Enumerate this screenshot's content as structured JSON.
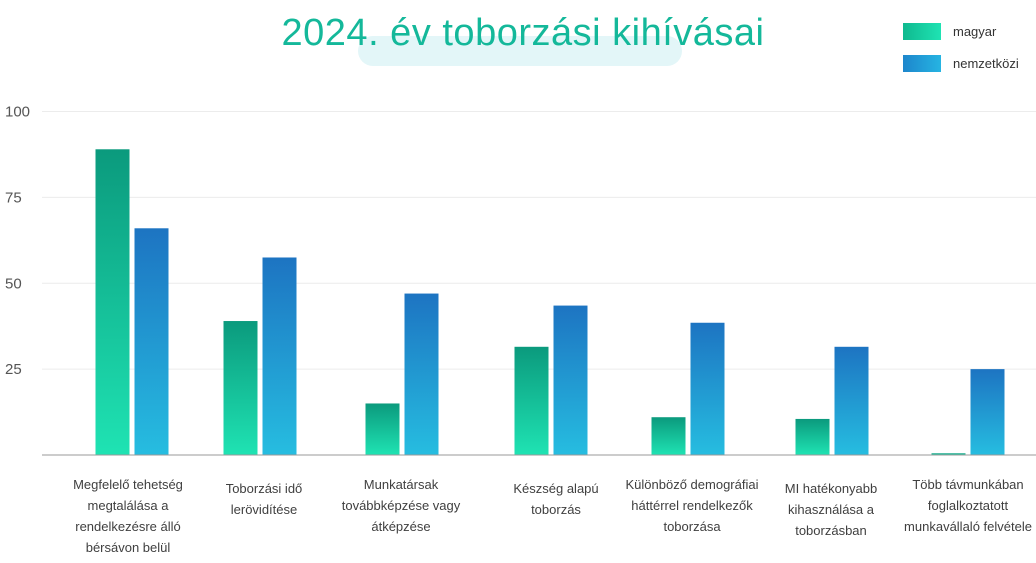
{
  "chart_data": {
    "type": "bar",
    "title": "2024. év toborzási kihívásai",
    "categories": [
      "Megfelelő tehetség megtalálása a rendelkezésre álló bérsávon belül",
      "Toborzási idő lerövidítése",
      "Munkatársak továbbképzése vagy átképzése",
      "Készség alapú toborzás",
      "Különböző demográfiai háttérrel rendelkezők toborzása",
      "MI hatékonyabb kihasználása a toborzásban",
      "Több távmunkában foglalkoztatott munkavállaló felvétele"
    ],
    "series": [
      {
        "name": "magyar",
        "values": [
          89,
          39,
          15,
          31.5,
          11,
          10.5,
          0.5
        ]
      },
      {
        "name": "nemzetközi",
        "values": [
          66,
          57.5,
          47,
          43.5,
          38.5,
          31.5,
          25
        ]
      }
    ],
    "yticks": [
      "25",
      "50",
      "75",
      "100"
    ],
    "ytick_values": [
      25,
      50,
      75,
      100
    ],
    "ylim": [
      0,
      100
    ],
    "legend_position": "top-right",
    "colors": {
      "magyar_top": "#0b9a7d",
      "magyar_bottom": "#1fe3b3",
      "nemzetkozi_top": "#1d74c2",
      "nemzetkozi_bottom": "#26bde0",
      "title": "#14b89a",
      "title_pill": "#e3f6f8"
    }
  }
}
